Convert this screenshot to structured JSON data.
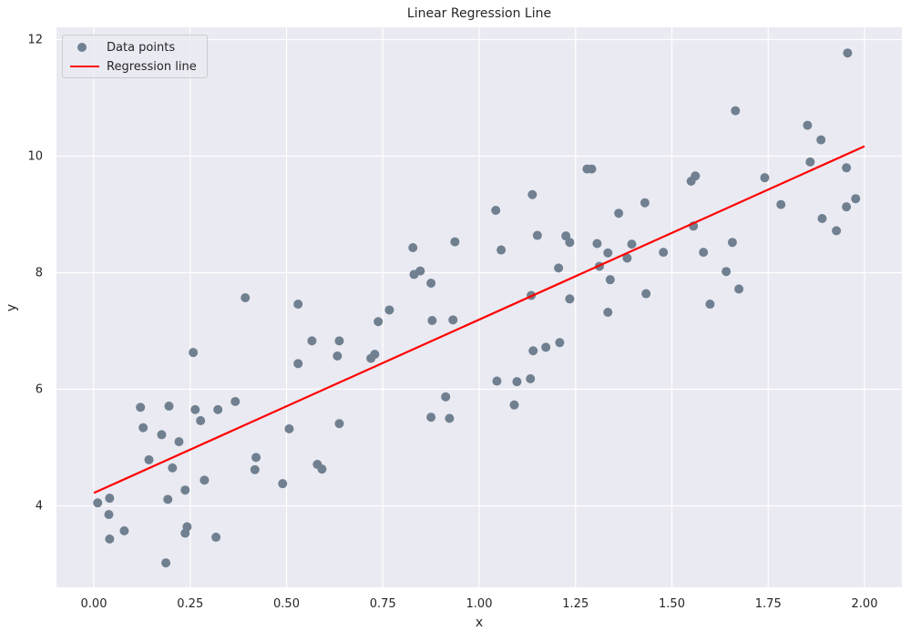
{
  "chart_data": {
    "type": "scatter",
    "title": "Linear Regression Line",
    "xlabel": "x",
    "ylabel": "y",
    "xlim": [
      -0.1,
      2.1
    ],
    "ylim": [
      2.59,
      12.2
    ],
    "xticks": [
      "0.00",
      "0.25",
      "0.50",
      "0.75",
      "1.00",
      "1.25",
      "1.50",
      "1.75",
      "2.00"
    ],
    "yticks": [
      "4",
      "6",
      "8",
      "10",
      "12"
    ],
    "grid": true,
    "legend_position": "upper left",
    "legend": [
      "Data points",
      "Regression line"
    ],
    "series": [
      {
        "name": "Data points",
        "type": "scatter",
        "color": "#708090",
        "points": [
          [
            0.01,
            4.05
          ],
          [
            0.041,
            4.13
          ],
          [
            0.039,
            3.85
          ],
          [
            0.041,
            3.43
          ],
          [
            0.079,
            3.57
          ],
          [
            0.121,
            5.69
          ],
          [
            0.128,
            5.34
          ],
          [
            0.143,
            4.79
          ],
          [
            0.176,
            5.22
          ],
          [
            0.187,
            3.02
          ],
          [
            0.192,
            4.11
          ],
          [
            0.195,
            5.71
          ],
          [
            0.204,
            4.65
          ],
          [
            0.221,
            5.1
          ],
          [
            0.237,
            4.27
          ],
          [
            0.237,
            3.53
          ],
          [
            0.242,
            3.64
          ],
          [
            0.258,
            6.63
          ],
          [
            0.263,
            5.65
          ],
          [
            0.277,
            5.46
          ],
          [
            0.287,
            4.44
          ],
          [
            0.317,
            3.46
          ],
          [
            0.322,
            5.65
          ],
          [
            0.367,
            5.79
          ],
          [
            0.393,
            7.57
          ],
          [
            0.421,
            4.83
          ],
          [
            0.418,
            4.62
          ],
          [
            0.49,
            4.38
          ],
          [
            0.507,
            5.32
          ],
          [
            0.53,
            7.46
          ],
          [
            0.53,
            6.44
          ],
          [
            0.566,
            6.83
          ],
          [
            0.58,
            4.71
          ],
          [
            0.592,
            4.63
          ],
          [
            0.632,
            6.57
          ],
          [
            0.637,
            6.83
          ],
          [
            0.637,
            5.41
          ],
          [
            0.719,
            6.53
          ],
          [
            0.729,
            6.6
          ],
          [
            0.738,
            7.16
          ],
          [
            0.767,
            7.36
          ],
          [
            0.828,
            8.43
          ],
          [
            0.831,
            7.97
          ],
          [
            0.847,
            8.03
          ],
          [
            0.875,
            7.82
          ],
          [
            0.878,
            7.18
          ],
          [
            0.875,
            5.52
          ],
          [
            0.913,
            5.87
          ],
          [
            0.923,
            5.5
          ],
          [
            0.932,
            7.19
          ],
          [
            0.937,
            8.53
          ],
          [
            1.043,
            9.07
          ],
          [
            1.046,
            6.14
          ],
          [
            1.057,
            8.39
          ],
          [
            1.091,
            5.73
          ],
          [
            1.098,
            6.13
          ],
          [
            1.133,
            6.18
          ],
          [
            1.135,
            7.61
          ],
          [
            1.138,
            9.34
          ],
          [
            1.14,
            6.66
          ],
          [
            1.151,
            8.64
          ],
          [
            1.173,
            6.72
          ],
          [
            1.206,
            8.08
          ],
          [
            1.209,
            6.8
          ],
          [
            1.225,
            8.63
          ],
          [
            1.235,
            8.52
          ],
          [
            1.235,
            7.55
          ],
          [
            1.28,
            9.78
          ],
          [
            1.292,
            9.78
          ],
          [
            1.306,
            8.5
          ],
          [
            1.312,
            8.11
          ],
          [
            1.334,
            8.34
          ],
          [
            1.34,
            7.88
          ],
          [
            1.334,
            7.32
          ],
          [
            1.362,
            9.02
          ],
          [
            1.384,
            8.25
          ],
          [
            1.396,
            8.49
          ],
          [
            1.43,
            9.2
          ],
          [
            1.433,
            7.64
          ],
          [
            1.478,
            8.35
          ],
          [
            1.55,
            9.57
          ],
          [
            1.561,
            9.66
          ],
          [
            1.556,
            8.8
          ],
          [
            1.582,
            8.35
          ],
          [
            1.599,
            7.46
          ],
          [
            1.641,
            8.02
          ],
          [
            1.657,
            8.52
          ],
          [
            1.665,
            10.78
          ],
          [
            1.674,
            7.72
          ],
          [
            1.741,
            9.63
          ],
          [
            1.783,
            9.17
          ],
          [
            1.852,
            10.53
          ],
          [
            1.859,
            9.9
          ],
          [
            1.887,
            10.28
          ],
          [
            1.89,
            8.93
          ],
          [
            1.927,
            8.72
          ],
          [
            1.953,
            9.8
          ],
          [
            1.953,
            9.13
          ],
          [
            1.956,
            11.77
          ],
          [
            1.977,
            9.27
          ]
        ]
      },
      {
        "name": "Regression line",
        "type": "line",
        "color": "#ff0000",
        "x": [
          0.0,
          2.0
        ],
        "y": [
          4.22,
          10.17
        ]
      }
    ]
  },
  "colors": {
    "plot_background": "#eaeaf2",
    "grid": "#ffffff",
    "points": "#708090",
    "regression_line": "#ff0000"
  }
}
